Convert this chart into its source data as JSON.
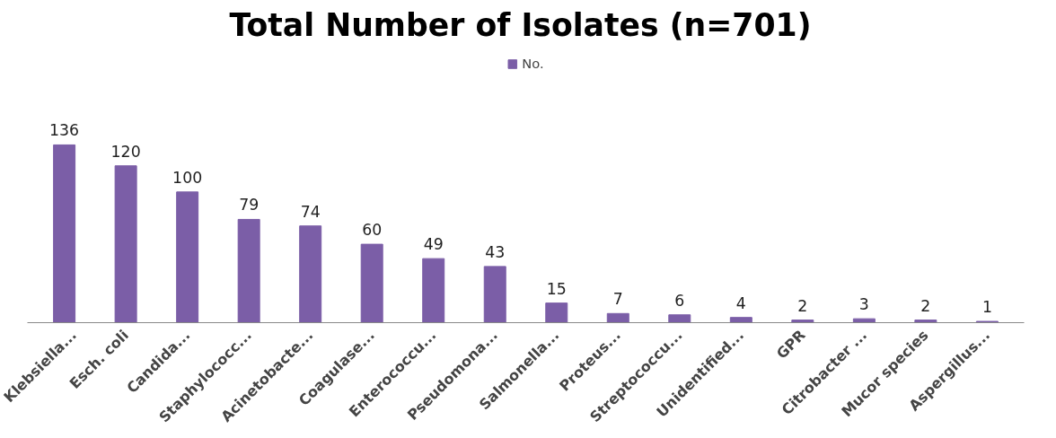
{
  "chart_data": {
    "type": "bar",
    "title": "Total  Number of Isolates (n=701)",
    "categories": [
      "Klebsiella...",
      "Esch. coli",
      "Candida...",
      "Staphylococc...",
      "Acinetobacte...",
      "Coagulase...",
      "Enterococcu...",
      "Pseudomona...",
      "Salmonella...",
      "Proteus...",
      "Streptococcu...",
      "Unidentified...",
      "GPR",
      "Citrobacter ...",
      "Mucor species",
      "Aspergillus..."
    ],
    "series": [
      {
        "name": "No.",
        "color": "#7b5ea7",
        "values": [
          136,
          120,
          100,
          79,
          74,
          60,
          49,
          43,
          15,
          7,
          6,
          4,
          2,
          3,
          2,
          1
        ]
      }
    ],
    "data_labels": true,
    "legend": "top",
    "grid": false,
    "tick_labels": "x"
  }
}
